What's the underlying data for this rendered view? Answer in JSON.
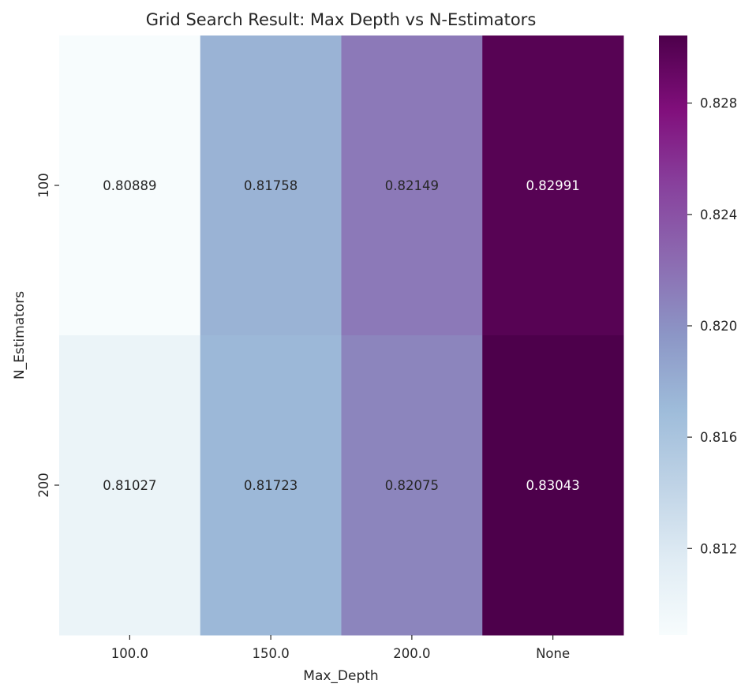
{
  "chart_data": {
    "type": "heatmap",
    "title": "Grid Search Result: Max Depth vs N-Estimators",
    "xlabel": "Max_Depth",
    "ylabel": "N_Estimators",
    "x_categories": [
      "100.0",
      "150.0",
      "200.0",
      "None"
    ],
    "y_categories": [
      "100",
      "200"
    ],
    "values": [
      [
        0.80889,
        0.81758,
        0.82149,
        0.82991
      ],
      [
        0.81027,
        0.81723,
        0.82075,
        0.83043
      ]
    ],
    "value_labels": [
      [
        "0.80889",
        "0.81758",
        "0.82149",
        "0.82991"
      ],
      [
        "0.81027",
        "0.81723",
        "0.82075",
        "0.83043"
      ]
    ],
    "colormap": "BuPu",
    "colorbar": {
      "range": [
        0.80889,
        0.83043
      ],
      "ticks": [
        0.812,
        0.816,
        0.82,
        0.824,
        0.828
      ],
      "tick_labels": [
        "0.812",
        "0.816",
        "0.820",
        "0.824",
        "0.828"
      ]
    },
    "annotation_colors": {
      "dark": "#262626",
      "light": "#ffffff"
    }
  }
}
